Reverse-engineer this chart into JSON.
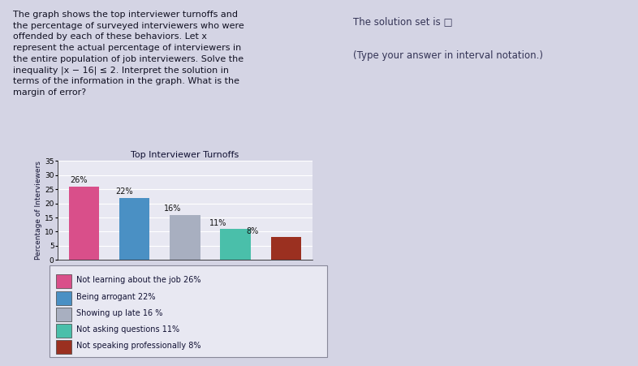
{
  "title": "Top Interviewer Turnoffs",
  "ylabel": "Percentage of Interviewers",
  "values": [
    26,
    22,
    16,
    11,
    8
  ],
  "bar_colors": [
    "#d94f8a",
    "#4a90c4",
    "#a8afc0",
    "#4abfaa",
    "#9b3020"
  ],
  "ylim": [
    0,
    35
  ],
  "yticks": [
    0,
    5,
    10,
    15,
    20,
    25,
    30,
    35
  ],
  "bar_labels": [
    "26%",
    "22%",
    "16%",
    "11%",
    "8%"
  ],
  "legend_labels": [
    "Not learning about the job 26%",
    "Being arrogant 22%",
    "Showing up late 16 %",
    "Not asking questions 11%",
    "Not speaking professionally 8%"
  ],
  "legend_colors": [
    "#d94f8a",
    "#4a90c4",
    "#a8afc0",
    "#4abfaa",
    "#9b3020"
  ],
  "text_left": "The graph shows the top interviewer turnoffs and\nthe percentage of surveyed interviewers who were\noffended by each of these behaviors. Let x\nrepresent the actual percentage of interviewers in\nthe entire population of job interviewers. Solve the\ninequality |x − 16| ≤ 2. Interpret the solution in\nterms of the information in the graph. What is the\nmargin of error?",
  "text_right_line1": "The solution set is □",
  "text_right_line2": "(Type your answer in interval notation.)",
  "background_color": "#d4d4e4",
  "chart_bg": "#e8e8f2",
  "legend_bg": "#e8e8f2"
}
